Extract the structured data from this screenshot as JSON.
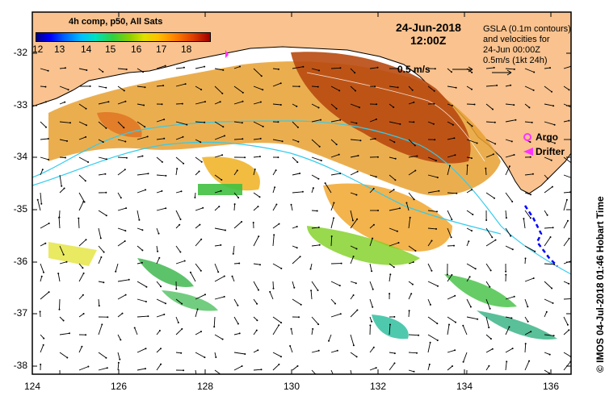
{
  "colorbar": {
    "title": "4h comp, p50, All Sats",
    "ticks": [
      "12",
      "13",
      "14",
      "15",
      "16",
      "17",
      "18"
    ]
  },
  "header": {
    "date": "24-Jun-2018",
    "time": "12:00Z"
  },
  "gsla_note": {
    "line1": "GSLA (0.1m contours)",
    "line2": "and velocities for",
    "line3": "24-Jun 00:00Z",
    "line4": "0.5m/s (1kt 24h)"
  },
  "velocity_reference": {
    "label": "0.5 m/s"
  },
  "legend": {
    "argo": "Argo",
    "drifter": "Drifter",
    "argo_color": "#ff33ff",
    "drifter_color": "#ff33ff"
  },
  "axes": {
    "x_ticks": [
      "124",
      "126",
      "128",
      "130",
      "132",
      "134",
      "136"
    ],
    "y_ticks": [
      "-32",
      "-33",
      "-34",
      "-35",
      "-36",
      "-37",
      "-38"
    ]
  },
  "side_label": "© IMOS 04-Jul-2018 01:46 Hobart Time",
  "colors": {
    "land": "#f9c28e",
    "current_contour": "#33ccee",
    "drifter_track": "#0000ff"
  }
}
